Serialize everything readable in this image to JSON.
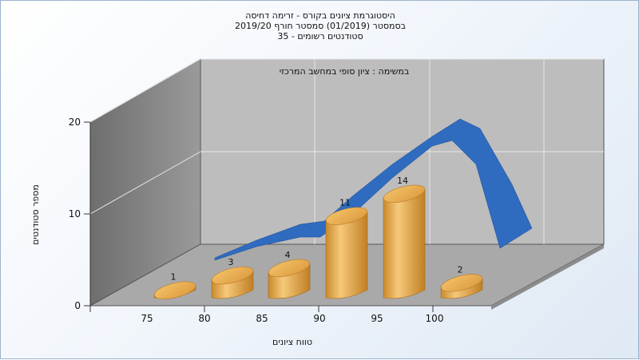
{
  "chart_data": {
    "type": "bar",
    "title_lines": [
      "היסטוגרמת ציונים בקורס - זרימה דחיסה",
      "בסמסטר  (01/2019)  סמסטר חורף 2019/20",
      "סטודנטים רשומים - 35"
    ],
    "subtitle": "במשימה : ציון סופי במחשב המרכזי",
    "xlabel": "טווח ציונים",
    "ylabel": "מספר סטודנטים",
    "categories": [
      "75",
      "80",
      "85",
      "90",
      "95",
      "100"
    ],
    "x_tick_labels": [
      "75",
      "80",
      "85",
      "90",
      "95",
      "100"
    ],
    "values": [
      1,
      3,
      4,
      11,
      14,
      2
    ],
    "y_ticks": [
      0,
      10,
      20
    ],
    "ylim": [
      0,
      20
    ],
    "grid": true,
    "bar_color": "#e8a84c",
    "curve_color": "#2f6bbf",
    "curve_description_values": [
      3,
      3.5,
      4,
      11,
      15,
      6
    ]
  }
}
